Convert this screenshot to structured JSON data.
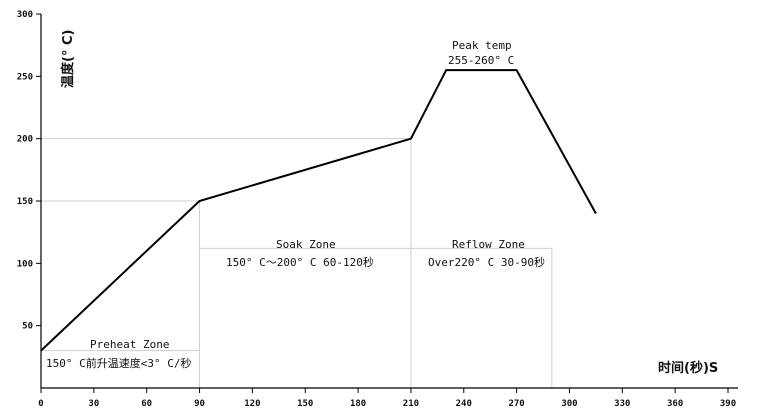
{
  "chart_data": {
    "type": "line",
    "title": "",
    "xlabel": "时间(秒)S",
    "ylabel": "温度(° C)",
    "xlim": [
      0,
      390
    ],
    "ylim": [
      0,
      300
    ],
    "xticks": [
      0,
      30,
      60,
      90,
      120,
      150,
      180,
      210,
      240,
      270,
      300,
      330,
      360,
      390
    ],
    "yticks": [
      50,
      100,
      150,
      200,
      250,
      300
    ],
    "xtick_labels": [
      "0",
      "30",
      "60",
      "90",
      "120",
      "150",
      "180",
      "210",
      "240",
      "270",
      "300",
      "330",
      "360",
      "390"
    ],
    "ytick_labels": [
      "50",
      "100",
      "150",
      "200",
      "250",
      "300"
    ],
    "grid": false,
    "series": [
      {
        "x": [
          0,
          90,
          210,
          230,
          270,
          315
        ],
        "y": [
          30,
          150,
          200,
          255,
          255,
          140
        ]
      }
    ],
    "annotations": [
      {
        "name": "peak",
        "lines": [
          "Peak temp",
          "255-260° C"
        ]
      },
      {
        "name": "preheat",
        "lines": [
          "Preheat Zone",
          "150° C前升温速度<3° C/秒"
        ]
      },
      {
        "name": "soak",
        "lines": [
          "Soak Zone",
          "150° C～200° C    60-120秒"
        ]
      },
      {
        "name": "reflow",
        "lines": [
          "Reflow Zone",
          "Over220° C 30-90秒"
        ]
      }
    ]
  }
}
